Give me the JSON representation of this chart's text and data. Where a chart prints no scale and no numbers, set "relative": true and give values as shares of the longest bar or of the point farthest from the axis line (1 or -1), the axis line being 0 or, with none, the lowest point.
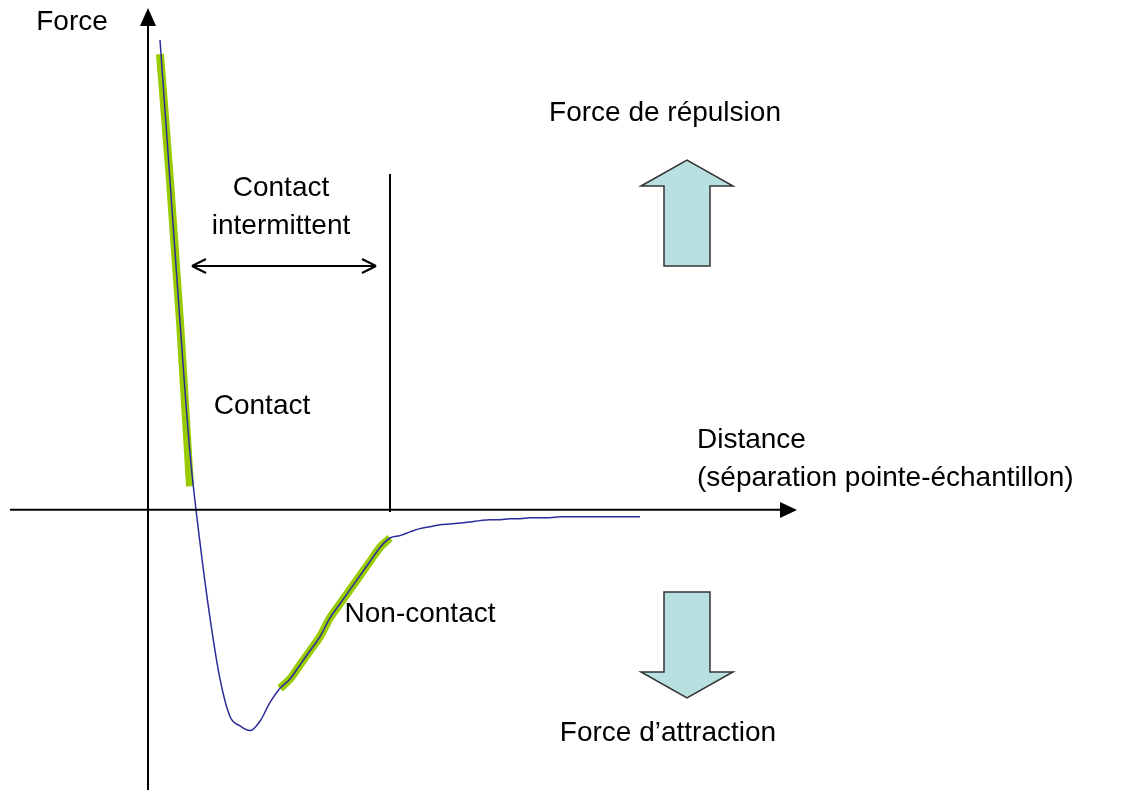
{
  "chart_data": {
    "type": "line",
    "relative": true,
    "ylabel": "Force",
    "xlabel": "Distance\n(séparation pointe-échantillon)",
    "categories": [
      null,
      null,
      null,
      null,
      null,
      null,
      null,
      null,
      null,
      null,
      null,
      null,
      null,
      null,
      null,
      null,
      null,
      null,
      null,
      null,
      null,
      null,
      null,
      null,
      null,
      null,
      null,
      null,
      null,
      null,
      null,
      null,
      null,
      null,
      null,
      null,
      null,
      null,
      null,
      null,
      null,
      null,
      null,
      null,
      null,
      null,
      null,
      null,
      null,
      null,
      null,
      null,
      null,
      null,
      null,
      null,
      null,
      null,
      null,
      null,
      null,
      null,
      null,
      null,
      null
    ],
    "series": [
      {
        "color": "#2b2b9a",
        "values": [
          null,
          1.0,
          0.7,
          0.4,
          0.12,
          -0.07,
          -0.23,
          -0.36,
          -0.44,
          -0.46,
          -0.47,
          -0.45,
          -0.41,
          -0.38,
          -0.36,
          -0.33,
          -0.3,
          -0.27,
          -0.23,
          -0.2,
          -0.17,
          -0.14,
          -0.11,
          -0.08,
          -0.06,
          -0.055,
          -0.047,
          -0.04,
          -0.036,
          -0.032,
          -0.03,
          -0.028,
          -0.026,
          -0.023,
          -0.021,
          -0.021,
          -0.019,
          -0.019,
          -0.017,
          -0.017,
          -0.017,
          -0.015,
          -0.015,
          -0.015,
          -0.015,
          -0.015,
          -0.015,
          -0.015,
          -0.015,
          -0.015,
          null,
          null,
          null,
          null,
          null,
          null,
          null,
          null,
          null,
          null,
          null,
          null,
          null,
          null,
          null
        ]
      },
      {
        "color": "#99cc00",
        "values": [
          null,
          0.97,
          0.7,
          0.4,
          0.05,
          null,
          null,
          null,
          null,
          null,
          null,
          null,
          null,
          -0.38,
          -0.36,
          -0.33,
          -0.3,
          -0.27,
          -0.23,
          -0.2,
          -0.17,
          -0.14,
          -0.11,
          -0.08,
          -0.06,
          null,
          null,
          null,
          null,
          null,
          null,
          null,
          null,
          null,
          null,
          null,
          null,
          null,
          null,
          null,
          null,
          null,
          null,
          null,
          null,
          null,
          null,
          null,
          null,
          null,
          null,
          null,
          null,
          null,
          null,
          null,
          null,
          null,
          null,
          null,
          null,
          null,
          null,
          null,
          null
        ]
      }
    ],
    "annotations": [
      "Force de répulsion",
      "Force d’attraction",
      "Contact intermittent",
      "Contact",
      "Non-contact"
    ]
  }
}
